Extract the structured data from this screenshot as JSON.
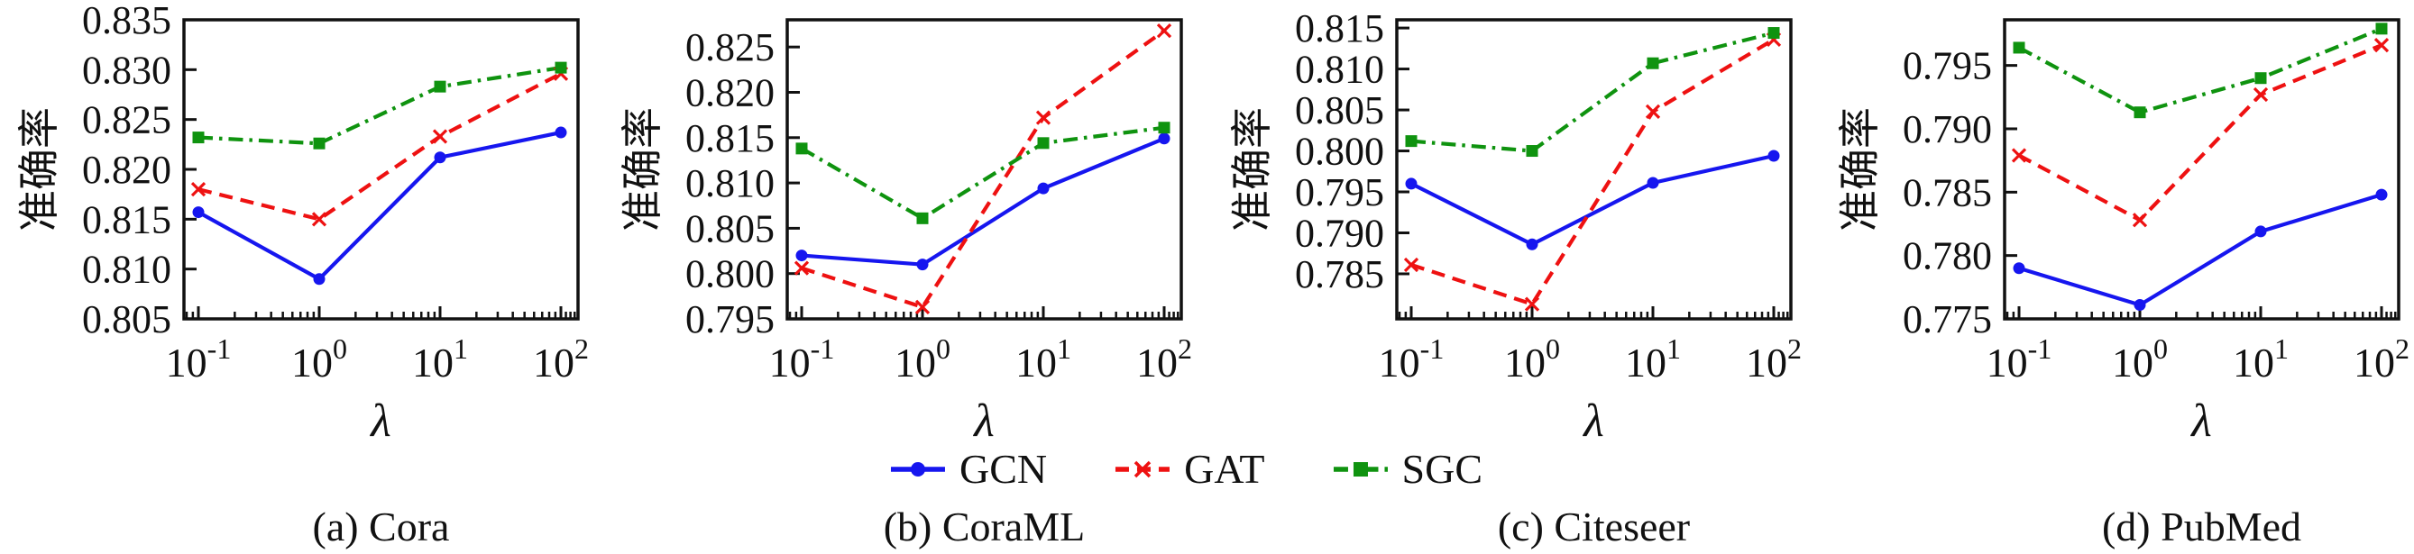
{
  "figure": {
    "ylabel": "准确率",
    "xlabel": "λ",
    "background": "#ffffff",
    "axis_color": "#111111"
  },
  "legend": {
    "position": "below-figure-center",
    "items": [
      {
        "label": "GCN",
        "color": "#1616ef",
        "marker": "circle",
        "linestyle": "solid"
      },
      {
        "label": "GAT",
        "color": "#ee1111",
        "marker": "x",
        "linestyle": "dashed"
      },
      {
        "label": "SGC",
        "color": "#0f930f",
        "marker": "square",
        "linestyle": "dashdot"
      }
    ]
  },
  "chart_data": [
    {
      "type": "line",
      "title": "(a) Cora",
      "xlabel": "λ",
      "ylabel": "准确率",
      "x_scale": "log",
      "x": [
        0.1,
        1,
        10,
        100
      ],
      "x_tick_labels": [
        "10^-1",
        "10^0",
        "10^1",
        "10^2"
      ],
      "ylim": [
        0.805,
        0.835
      ],
      "yticks": [
        0.805,
        0.81,
        0.815,
        0.82,
        0.825,
        0.83,
        0.835
      ],
      "grid": false,
      "legend_position": "shared-below",
      "series": [
        {
          "name": "GCN",
          "values": [
            0.8157,
            0.809,
            0.8212,
            0.8237
          ]
        },
        {
          "name": "GAT",
          "values": [
            0.818,
            0.815,
            0.8233,
            0.8296
          ]
        },
        {
          "name": "SGC",
          "values": [
            0.8232,
            0.8226,
            0.8283,
            0.8302
          ]
        }
      ]
    },
    {
      "type": "line",
      "title": "(b) CoraML",
      "xlabel": "λ",
      "ylabel": "准确率",
      "x_scale": "log",
      "x": [
        0.1,
        1,
        10,
        100
      ],
      "x_tick_labels": [
        "10^-1",
        "10^0",
        "10^1",
        "10^2"
      ],
      "ylim": [
        0.795,
        0.828
      ],
      "yticks": [
        0.795,
        0.8,
        0.805,
        0.81,
        0.815,
        0.82,
        0.825
      ],
      "grid": false,
      "legend_position": "shared-below",
      "series": [
        {
          "name": "GCN",
          "values": [
            0.802,
            0.801,
            0.8094,
            0.8149
          ]
        },
        {
          "name": "GAT",
          "values": [
            0.8006,
            0.7963,
            0.8172,
            0.8268
          ]
        },
        {
          "name": "SGC",
          "values": [
            0.8138,
            0.8061,
            0.8144,
            0.8161
          ]
        }
      ]
    },
    {
      "type": "line",
      "title": "(c) Citeseer",
      "xlabel": "λ",
      "ylabel": "准确率",
      "x_scale": "log",
      "x": [
        0.1,
        1,
        10,
        100
      ],
      "x_tick_labels": [
        "10^-1",
        "10^0",
        "10^1",
        "10^2"
      ],
      "ylim": [
        0.7795,
        0.816
      ],
      "yticks": [
        0.785,
        0.79,
        0.795,
        0.8,
        0.805,
        0.81,
        0.815
      ],
      "grid": false,
      "legend_position": "shared-below",
      "series": [
        {
          "name": "GCN",
          "values": [
            0.796,
            0.7886,
            0.7961,
            0.7994
          ]
        },
        {
          "name": "GAT",
          "values": [
            0.7861,
            0.7813,
            0.8048,
            0.8136
          ]
        },
        {
          "name": "SGC",
          "values": [
            0.8012,
            0.8,
            0.8107,
            0.8144
          ]
        }
      ]
    },
    {
      "type": "line",
      "title": "(d) PubMed",
      "xlabel": "λ",
      "ylabel": "准确率",
      "x_scale": "log",
      "x": [
        0.1,
        1,
        10,
        100
      ],
      "x_tick_labels": [
        "10^-1",
        "10^0",
        "10^1",
        "10^2"
      ],
      "ylim": [
        0.775,
        0.7986
      ],
      "yticks": [
        0.775,
        0.78,
        0.785,
        0.79,
        0.795
      ],
      "grid": false,
      "legend_position": "shared-below",
      "series": [
        {
          "name": "GCN",
          "values": [
            0.779,
            0.7761,
            0.7819,
            0.7848
          ]
        },
        {
          "name": "GAT",
          "values": [
            0.7879,
            0.7828,
            0.7927,
            0.7966
          ]
        },
        {
          "name": "SGC",
          "values": [
            0.7964,
            0.7913,
            0.794,
            0.7979
          ]
        }
      ]
    }
  ]
}
